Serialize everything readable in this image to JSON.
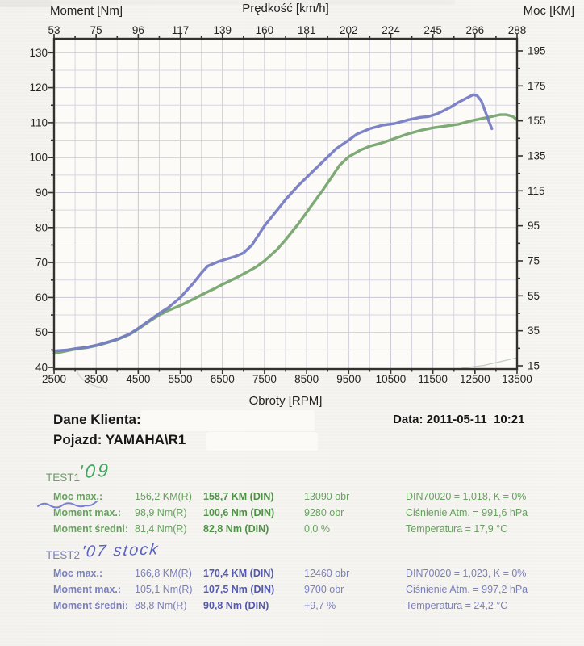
{
  "chart": {
    "title_left": "Moment [Nm]",
    "title_center": "Prędkość [km/h]",
    "title_right": "Moc [KM]",
    "xlabel": "Obroty [RPM]",
    "top_ticks": [
      53,
      75,
      96,
      117,
      139,
      160,
      181,
      202,
      224,
      245,
      266,
      288
    ],
    "bottom_ticks": [
      2500,
      3500,
      4500,
      5500,
      6500,
      7500,
      8500,
      9500,
      10500,
      11500,
      12500,
      13500
    ],
    "left_ticks": [
      40,
      50,
      60,
      70,
      80,
      90,
      100,
      110,
      120,
      130
    ],
    "right_ticks": [
      15,
      35,
      55,
      75,
      95,
      115,
      135,
      155,
      175,
      195
    ],
    "colors": {
      "test1_green": "#76a56e",
      "test2_blue": "#767cc3",
      "grid_minor": "#d7d5df",
      "grid_major": "#c9c7d4",
      "frame": "#35322e",
      "plot_bg": "#fcfbf8"
    }
  },
  "chart_data": {
    "type": "line",
    "title": "",
    "xlabel": "Obroty [RPM]",
    "ylabel_left": "Moment [Nm]",
    "ylabel_right": "Moc [KM]",
    "xlabel_top": "Prędkość [km/h]",
    "x_range_rpm": [
      2500,
      13500
    ],
    "left_axis_range_nm": [
      40,
      130
    ],
    "right_axis_range_km": [
      15,
      195
    ],
    "top_axis_range_kmh": [
      53,
      288
    ],
    "grid": true,
    "legend_position": "none",
    "series": [
      {
        "name": "TEST1 '09 (green)",
        "color": "#76a56e",
        "axis": "right",
        "peak_power": "158,7 KM (DIN) @ 13090 obr",
        "peak_torque": "100,6 Nm (DIN) @ 9280 obr",
        "points_rpm_km": [
          [
            2500,
            22
          ],
          [
            2800,
            23.5
          ],
          [
            3000,
            24.5
          ],
          [
            3300,
            25.5
          ],
          [
            3500,
            26.5
          ],
          [
            3800,
            28.5
          ],
          [
            4000,
            30
          ],
          [
            4300,
            33
          ],
          [
            4500,
            36
          ],
          [
            4800,
            41
          ],
          [
            5000,
            44
          ],
          [
            5200,
            46.5
          ],
          [
            5500,
            49.5
          ],
          [
            5800,
            53
          ],
          [
            6000,
            55.5
          ],
          [
            6300,
            59
          ],
          [
            6500,
            61.5
          ],
          [
            6800,
            65
          ],
          [
            7000,
            67.5
          ],
          [
            7300,
            71.5
          ],
          [
            7500,
            75
          ],
          [
            7800,
            81.5
          ],
          [
            8000,
            87
          ],
          [
            8300,
            96
          ],
          [
            8600,
            106
          ],
          [
            8900,
            116
          ],
          [
            9100,
            123
          ],
          [
            9280,
            129.5
          ],
          [
            9500,
            134.5
          ],
          [
            9800,
            138.5
          ],
          [
            10000,
            140.5
          ],
          [
            10300,
            142.5
          ],
          [
            10600,
            145
          ],
          [
            10900,
            147.5
          ],
          [
            11200,
            149.5
          ],
          [
            11500,
            151
          ],
          [
            11800,
            152
          ],
          [
            12100,
            153
          ],
          [
            12400,
            155
          ],
          [
            12700,
            156.5
          ],
          [
            12900,
            157.5
          ],
          [
            13090,
            158.5
          ],
          [
            13250,
            158.5
          ],
          [
            13400,
            157.5
          ],
          [
            13500,
            155.5
          ]
        ]
      },
      {
        "name": "TEST2 '07 stock (blue)",
        "color": "#767cc3",
        "axis": "right",
        "peak_power": "170,4 KM (DIN) @ 12460 obr",
        "peak_torque": "107,5 Nm (DIN) @ 9700 obr",
        "points_rpm_km": [
          [
            2500,
            23.5
          ],
          [
            2800,
            24
          ],
          [
            3000,
            24.8
          ],
          [
            3300,
            25.7
          ],
          [
            3500,
            26.7
          ],
          [
            3800,
            28.7
          ],
          [
            4000,
            30.2
          ],
          [
            4300,
            33.2
          ],
          [
            4500,
            36.4
          ],
          [
            4800,
            41.5
          ],
          [
            5000,
            45
          ],
          [
            5200,
            48
          ],
          [
            5500,
            54
          ],
          [
            5800,
            62
          ],
          [
            6000,
            68
          ],
          [
            6150,
            72
          ],
          [
            6400,
            74.5
          ],
          [
            6600,
            76
          ],
          [
            6800,
            77.5
          ],
          [
            7000,
            79.5
          ],
          [
            7200,
            84
          ],
          [
            7500,
            95
          ],
          [
            7800,
            104
          ],
          [
            8000,
            110
          ],
          [
            8300,
            118
          ],
          [
            8600,
            125
          ],
          [
            8900,
            132
          ],
          [
            9200,
            139
          ],
          [
            9500,
            144
          ],
          [
            9700,
            147.5
          ],
          [
            10000,
            150.5
          ],
          [
            10300,
            152.5
          ],
          [
            10600,
            153.5
          ],
          [
            10900,
            155.5
          ],
          [
            11200,
            157
          ],
          [
            11400,
            157.5
          ],
          [
            11600,
            159
          ],
          [
            11900,
            162.5
          ],
          [
            12100,
            165.5
          ],
          [
            12300,
            168
          ],
          [
            12460,
            170
          ],
          [
            12550,
            169.5
          ],
          [
            12650,
            166.5
          ],
          [
            12750,
            160
          ],
          [
            12850,
            153.5
          ],
          [
            12900,
            150.5
          ]
        ]
      }
    ]
  },
  "header": {
    "dane_label": "Dane Klienta:",
    "pojazd": "Pojazd: YAMAHA\\R1",
    "date": "Data: 2011-05-11  10:21"
  },
  "tests": [
    {
      "name": "TEST1",
      "note": "'09",
      "rows": [
        {
          "label": "Moc max.:",
          "r": "156,2 KM(R)",
          "din": "158,7 KM (DIN)",
          "extra": "13090 obr",
          "info": "DIN70020 = 1,018, K = 0%"
        },
        {
          "label": "Moment max.:",
          "r": "98,9 Nm(R)",
          "din": "100,6 Nm (DIN)",
          "extra": "9280 obr",
          "info": "Ciśnienie Atm. = 991,6 hPa"
        },
        {
          "label": "Moment średni:",
          "r": "81,4 Nm(R)",
          "din": "82,8 Nm (DIN)",
          "extra": "0,0 %",
          "info": "Temperatura = 17,9 °C"
        }
      ]
    },
    {
      "name": "TEST2",
      "note": "'07 stock",
      "rows": [
        {
          "label": "Moc max.:",
          "r": "166,8 KM(R)",
          "din": "170,4 KM (DIN)",
          "extra": "12460 obr",
          "info": "DIN70020 = 1,023, K = 0%"
        },
        {
          "label": "Moment max.:",
          "r": "105,1 Nm(R)",
          "din": "107,5 Nm (DIN)",
          "extra": "9700 obr",
          "info": "Ciśnienie Atm. = 997,2 hPa"
        },
        {
          "label": "Moment średni:",
          "r": "88,8 Nm(R)",
          "din": "90,8 Nm (DIN)",
          "extra": "+9,7 %",
          "info": "Temperatura = 24,2 °C"
        }
      ]
    }
  ]
}
